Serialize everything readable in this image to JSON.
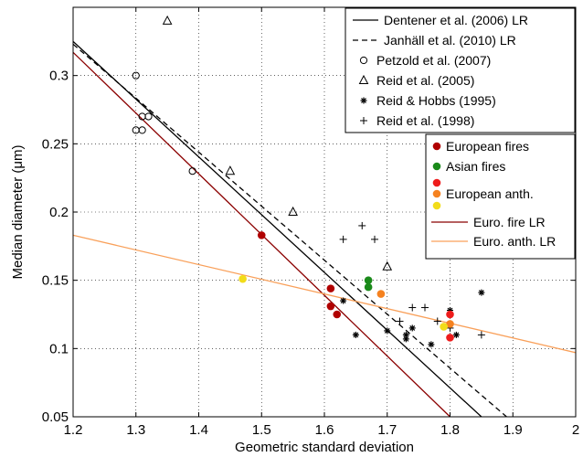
{
  "chart_data": {
    "type": "scatter",
    "xlabel": "Geometric standard deviation",
    "ylabel": "Median diameter (μm)",
    "xlim": [
      1.2,
      2.0
    ],
    "ylim": [
      0.05,
      0.35
    ],
    "xticks": [
      1.2,
      1.3,
      1.4,
      1.5,
      1.6,
      1.7,
      1.8,
      1.9,
      2.0
    ],
    "xtick_labels": [
      "1.2",
      "1.3",
      "1.4",
      "1.5",
      "1.6",
      "1.7",
      "1.8",
      "1.9",
      "2"
    ],
    "yticks": [
      0.05,
      0.1,
      0.15,
      0.2,
      0.25,
      0.3
    ],
    "ytick_labels": [
      "0.05",
      "0.1",
      "0.15",
      "0.2",
      "0.25",
      "0.3"
    ],
    "grid": true,
    "legend_upper_position": "top-right",
    "legend_lower_position": "right",
    "series": [
      {
        "name": "Petzold et al. (2007)",
        "marker": "circle-open",
        "color": "#000000",
        "points": [
          [
            1.3,
            0.3
          ],
          [
            1.3,
            0.26
          ],
          [
            1.31,
            0.26
          ],
          [
            1.31,
            0.27
          ],
          [
            1.32,
            0.27
          ],
          [
            1.39,
            0.23
          ]
        ]
      },
      {
        "name": "Reid et al. (2005)",
        "marker": "triangle-open",
        "color": "#000000",
        "points": [
          [
            1.35,
            0.34
          ],
          [
            1.45,
            0.23
          ],
          [
            1.55,
            0.2
          ],
          [
            1.7,
            0.16
          ]
        ]
      },
      {
        "name": "Reid & Hobbs (1995)",
        "marker": "asterisk",
        "color": "#000000",
        "points": [
          [
            1.62,
            0.125
          ],
          [
            1.63,
            0.135
          ],
          [
            1.65,
            0.11
          ],
          [
            1.7,
            0.113
          ],
          [
            1.73,
            0.11
          ],
          [
            1.74,
            0.115
          ],
          [
            1.73,
            0.107
          ],
          [
            1.77,
            0.103
          ],
          [
            1.8,
            0.128
          ],
          [
            1.81,
            0.11
          ],
          [
            1.85,
            0.141
          ]
        ]
      },
      {
        "name": "Reid et al. (1998)",
        "marker": "plus",
        "color": "#000000",
        "points": [
          [
            1.63,
            0.18
          ],
          [
            1.66,
            0.19
          ],
          [
            1.68,
            0.18
          ],
          [
            1.74,
            0.13
          ],
          [
            1.72,
            0.12
          ],
          [
            1.76,
            0.13
          ],
          [
            1.78,
            0.12
          ],
          [
            1.8,
            0.115
          ],
          [
            1.85,
            0.11
          ]
        ]
      },
      {
        "name": "European fires",
        "marker": "filled-circle",
        "color": "#b00000",
        "points": [
          [
            1.5,
            0.183
          ],
          [
            1.61,
            0.144
          ],
          [
            1.61,
            0.131
          ],
          [
            1.62,
            0.125
          ]
        ]
      },
      {
        "name": "Asian fires",
        "marker": "filled-circle",
        "color": "#1a8a1a",
        "points": [
          [
            1.67,
            0.15
          ],
          [
            1.67,
            0.145
          ]
        ]
      },
      {
        "name": "",
        "marker": "filled-circle",
        "color": "#ee1c1c",
        "points": [
          [
            1.8,
            0.125
          ],
          [
            1.8,
            0.108
          ]
        ]
      },
      {
        "name": "European anth.",
        "marker": "filled-circle",
        "color": "#f58220",
        "points": [
          [
            1.69,
            0.14
          ],
          [
            1.8,
            0.118
          ]
        ]
      },
      {
        "name": "",
        "marker": "filled-circle",
        "color": "#f2dc1a",
        "points": [
          [
            1.47,
            0.151
          ],
          [
            1.79,
            0.116
          ]
        ]
      }
    ],
    "lines": [
      {
        "name": "Dentener et al. (2006) LR",
        "style": "solid",
        "color": "#000000",
        "from": [
          1.2,
          0.325
        ],
        "to": [
          1.85,
          0.05
        ]
      },
      {
        "name": "Janhäll et al. (2010) LR",
        "style": "dashed",
        "color": "#000000",
        "from": [
          1.2,
          0.323
        ],
        "to": [
          1.89,
          0.05
        ]
      },
      {
        "name": "Euro. fire LR",
        "style": "solid",
        "color": "#8b0000",
        "from": [
          1.2,
          0.317
        ],
        "to": [
          1.8,
          0.05
        ]
      },
      {
        "name": "Euro. anth. LR",
        "style": "solid",
        "color": "#f9a05a",
        "from": [
          1.2,
          0.183
        ],
        "to": [
          2.0,
          0.097
        ]
      }
    ],
    "legend_upper": [
      {
        "label": "Dentener et al. (2006) LR",
        "kind": "line-solid",
        "color": "#000000"
      },
      {
        "label": "Janhäll et al. (2010) LR",
        "kind": "line-dashed",
        "color": "#000000"
      },
      {
        "label": "Petzold et al. (2007)",
        "kind": "circle-open",
        "color": "#000000"
      },
      {
        "label": "Reid et al. (2005)",
        "kind": "triangle-open",
        "color": "#000000"
      },
      {
        "label": "Reid & Hobbs (1995)",
        "kind": "asterisk",
        "color": "#000000"
      },
      {
        "label": "Reid et al. (1998)",
        "kind": "plus",
        "color": "#000000"
      }
    ],
    "legend_lower": [
      {
        "label": "European fires",
        "kind": "filled-circle",
        "colors": [
          "#b00000"
        ]
      },
      {
        "label": "Asian fires",
        "kind": "filled-circle",
        "colors": [
          "#1a8a1a"
        ]
      },
      {
        "label": "European anth.",
        "kind": "filled-circle",
        "colors": [
          "#ee1c1c",
          "#f58220",
          "#f2dc1a"
        ]
      },
      {
        "label": "Euro. fire LR",
        "kind": "line-solid",
        "colors": [
          "#8b0000"
        ]
      },
      {
        "label": "Euro. anth. LR",
        "kind": "line-solid",
        "colors": [
          "#f9a05a"
        ]
      }
    ]
  }
}
